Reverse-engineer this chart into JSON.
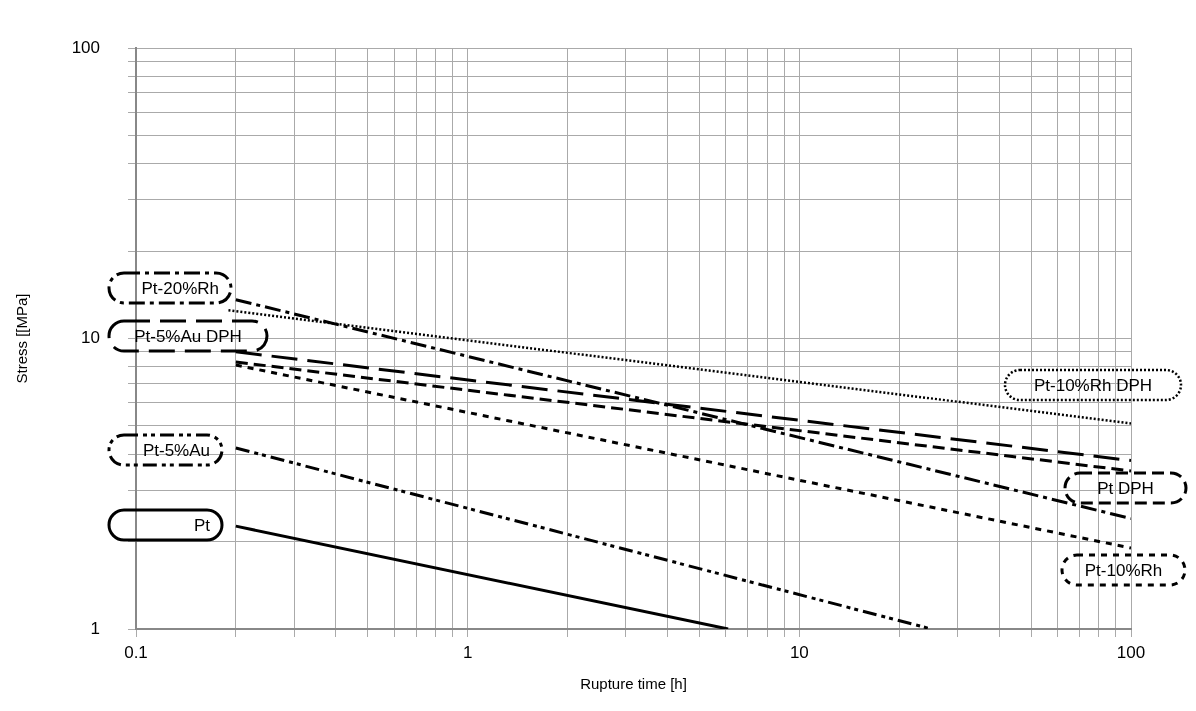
{
  "chart_data": {
    "type": "line",
    "xlabel": "Rupture time [h]",
    "ylabel": "Stress [[MPa]",
    "log": "xy",
    "grid": true,
    "legend": false,
    "marker": "none",
    "xlim": [
      0.1,
      100
    ],
    "ylim": [
      1,
      100
    ],
    "xticks": [
      0.1,
      {
        "value": 0.2,
        "label": null
      },
      {
        "value": 0.3,
        "label": null
      },
      {
        "value": 0.4,
        "label": null
      },
      {
        "value": 0.5,
        "label": null
      },
      {
        "value": 0.6,
        "label": null
      },
      {
        "value": 0.7,
        "label": null
      },
      {
        "value": 0.8,
        "label": null
      },
      {
        "value": 0.9,
        "label": null
      },
      1,
      {
        "value": 2,
        "label": null
      },
      {
        "value": 3,
        "label": null
      },
      {
        "value": 4,
        "label": null
      },
      {
        "value": 5,
        "label": null
      },
      {
        "value": 6,
        "label": null
      },
      {
        "value": 7,
        "label": null
      },
      {
        "value": 8,
        "label": null
      },
      {
        "value": 9,
        "label": null
      },
      10,
      {
        "value": 20,
        "label": null
      },
      {
        "value": 30,
        "label": null
      },
      {
        "value": 40,
        "label": null
      },
      {
        "value": 50,
        "label": null
      },
      {
        "value": 60,
        "label": null
      },
      {
        "value": 70,
        "label": null
      },
      {
        "value": 80,
        "label": null
      },
      {
        "value": 90,
        "label": null
      },
      100
    ],
    "yticks": [
      1,
      {
        "value": 2,
        "label": null
      },
      {
        "value": 3,
        "label": null
      },
      {
        "value": 4,
        "label": null
      },
      {
        "value": 5,
        "label": null
      },
      {
        "value": 6,
        "label": null
      },
      {
        "value": 7,
        "label": null
      },
      {
        "value": 8,
        "label": null
      },
      {
        "value": 9,
        "label": null
      },
      10,
      {
        "value": 20,
        "label": null
      },
      {
        "value": 30,
        "label": null
      },
      {
        "value": 40,
        "label": null
      },
      {
        "value": 50,
        "label": null
      },
      {
        "value": 60,
        "label": null
      },
      {
        "value": 70,
        "label": null
      },
      {
        "value": 80,
        "label": null
      },
      {
        "value": 90,
        "label": null
      },
      100
    ],
    "series": [
      {
        "name": "Pt-20%Rh",
        "color": "#000000",
        "line_style": "dashdot",
        "x": [
          0.2,
          100
        ],
        "values": [
          13.6,
          2.4
        ]
      },
      {
        "name": "Pt-5%Au DPH",
        "color": "#000000",
        "line_style": "longdash",
        "x": [
          0.2,
          100
        ],
        "values": [
          9.0,
          3.8
        ]
      },
      {
        "name": "Pt-5%Au",
        "color": "#000000",
        "line_style": "dashdotdot",
        "x": [
          0.2,
          25
        ],
        "values": [
          4.2,
          1
        ]
      },
      {
        "name": "Pt",
        "color": "#000000",
        "line_style": "solid",
        "x": [
          0.2,
          6.1
        ],
        "values": [
          2.26,
          1
        ]
      },
      {
        "name": "Pt-10%Rh DPH",
        "color": "#000000",
        "line_style": "dotted",
        "x": [
          0.19,
          100
        ],
        "values": [
          12.5,
          5.1
        ]
      },
      {
        "name": "Pt DPH",
        "color": "#000000",
        "line_style": "dashed",
        "x": [
          0.2,
          100
        ],
        "values": [
          8.3,
          3.5
        ]
      },
      {
        "name": "Pt-10%Rh",
        "color": "#000000",
        "line_style": "shortdash",
        "x": [
          0.2,
          100
        ],
        "values": [
          8.1,
          1.9
        ]
      }
    ]
  }
}
